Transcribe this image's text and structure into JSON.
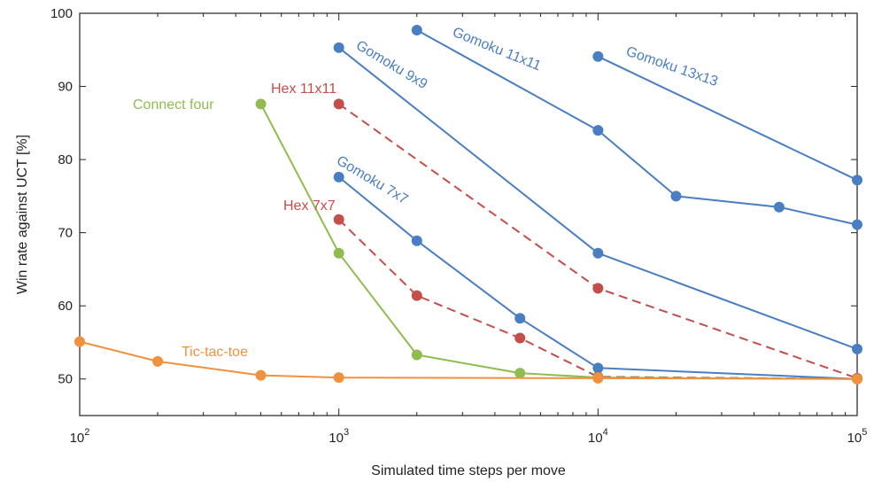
{
  "chart_data": {
    "type": "line",
    "xlabel": "Simulated time steps per move",
    "ylabel": "Win rate against UCT [%]",
    "xscale": "log",
    "xlim": [
      100,
      100000
    ],
    "ylim": [
      45,
      100
    ],
    "xticks": [
      100,
      1000,
      10000,
      100000
    ],
    "xtick_labels": [
      {
        "base": "10",
        "exp": "2"
      },
      {
        "base": "10",
        "exp": "3"
      },
      {
        "base": "10",
        "exp": "4"
      },
      {
        "base": "10",
        "exp": "5"
      }
    ],
    "yticks": [
      50,
      60,
      70,
      80,
      90,
      100
    ],
    "ytick_labels": [
      "50",
      "60",
      "70",
      "80",
      "90",
      "100"
    ],
    "grid": false,
    "series": [
      {
        "name": "Tic-tac-toe",
        "color": "#f0913f",
        "dashed": false,
        "x": [
          100,
          200,
          500,
          1000,
          10000,
          100000
        ],
        "y": [
          55.1,
          52.4,
          50.5,
          50.2,
          50.1,
          50.0
        ]
      },
      {
        "name": "Connect four",
        "color": "#8fbc4f",
        "dashed": false,
        "x": [
          500,
          1000,
          2000,
          5000,
          10000,
          100000
        ],
        "y": [
          87.6,
          67.2,
          53.3,
          50.8,
          50.2,
          50.0
        ]
      },
      {
        "name": "Hex 7x7",
        "color": "#c44e4a",
        "dashed": true,
        "x": [
          1000,
          2000,
          5000,
          10000,
          100000
        ],
        "y": [
          71.8,
          61.4,
          55.6,
          50.3,
          50.0
        ]
      },
      {
        "name": "Hex 11x11",
        "color": "#c44e4a",
        "dashed": true,
        "x": [
          1000,
          10000,
          100000
        ],
        "y": [
          87.6,
          62.4,
          50.1
        ]
      },
      {
        "name": "Gomoku 7x7",
        "color": "#4a7ec2",
        "dashed": false,
        "x": [
          1000,
          2000,
          5000,
          10000,
          100000
        ],
        "y": [
          77.6,
          68.9,
          58.3,
          51.5,
          50.0
        ]
      },
      {
        "name": "Gomoku 9x9",
        "color": "#4a7ec2",
        "dashed": false,
        "x": [
          1000,
          10000,
          100000
        ],
        "y": [
          95.3,
          67.2,
          54.1
        ]
      },
      {
        "name": "Gomoku 11x11",
        "color": "#4a7ec2",
        "dashed": false,
        "x": [
          2000,
          10000,
          20000,
          50000,
          100000
        ],
        "y": [
          97.7,
          84.0,
          75.0,
          73.5,
          71.1
        ]
      },
      {
        "name": "Gomoku 13x13",
        "color": "#4a7ec2",
        "dashed": false,
        "x": [
          10000,
          100000
        ],
        "y": [
          94.1,
          77.2
        ]
      }
    ]
  }
}
